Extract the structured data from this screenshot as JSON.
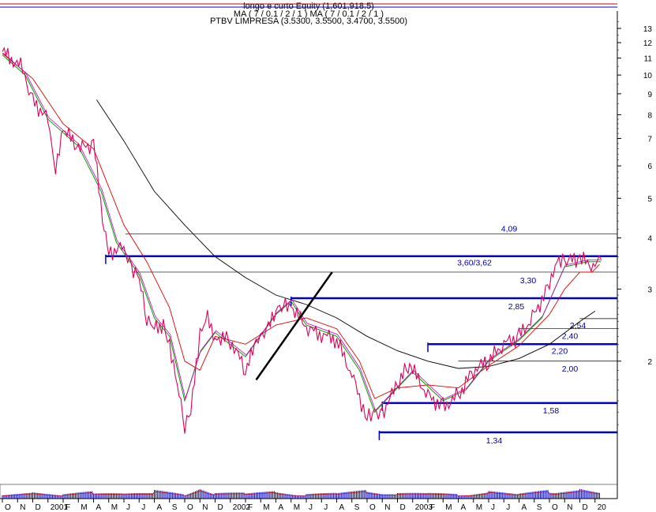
{
  "header": {
    "line1": "longo e curto Equity (1,601,918.5)",
    "line2": "MA ( 7 / 0.1 / 2 / 1 )  MA ( 7 / 0.1 / 2 / 1 )",
    "line3": "PTBV LIMPRESA (3.5300, 3.5500, 3.4700, 3.5500)"
  },
  "chart_data": {
    "type": "line",
    "title": "PTBV LIMPRESA",
    "y_scale": "log",
    "ylim": [
      1.2,
      14.5
    ],
    "y_ticks": [
      13,
      12,
      11,
      10,
      9,
      8,
      7,
      6,
      5,
      4,
      3,
      2
    ],
    "x_ticks": [
      "O",
      "N",
      "D",
      "2001",
      "F",
      "M",
      "A",
      "M",
      "J",
      "J",
      "A",
      "S",
      "O",
      "N",
      "D",
      "2002",
      "F",
      "M",
      "A",
      "M",
      "J",
      "J",
      "A",
      "S",
      "O",
      "N",
      "D",
      "2003",
      "F",
      "M",
      "A",
      "M",
      "J",
      "J",
      "A",
      "S",
      "O",
      "N",
      "D",
      "20"
    ],
    "x_index_range": [
      0,
      39.4
    ],
    "last_quote": {
      "open": 3.53,
      "high": 3.55,
      "low": 3.47,
      "close": 3.55
    },
    "price_path": [
      [
        0,
        11.4
      ],
      [
        1.2,
        10.5
      ],
      [
        2,
        8.7
      ],
      [
        3,
        7.8
      ],
      [
        3.5,
        6.0
      ],
      [
        4,
        7.4
      ],
      [
        5,
        6.6
      ],
      [
        6,
        6.8
      ],
      [
        6.7,
        4.2
      ],
      [
        7,
        3.7
      ],
      [
        8,
        3.8
      ],
      [
        8.5,
        3.4
      ],
      [
        9,
        3.2
      ],
      [
        9.5,
        2.5
      ],
      [
        10,
        2.4
      ],
      [
        10.6,
        2.45
      ],
      [
        11,
        2.2
      ],
      [
        11.5,
        1.8
      ],
      [
        12,
        1.4
      ],
      [
        12.4,
        1.5
      ],
      [
        13,
        2.3
      ],
      [
        13.5,
        2.55
      ],
      [
        14,
        2.3
      ],
      [
        15,
        2.25
      ],
      [
        16,
        1.9
      ],
      [
        16.7,
        2.2
      ],
      [
        17.5,
        2.4
      ],
      [
        18,
        2.65
      ],
      [
        18.5,
        2.8
      ],
      [
        19,
        2.75
      ],
      [
        20,
        2.4
      ],
      [
        22,
        2.25
      ],
      [
        23,
        1.85
      ],
      [
        24,
        1.45
      ],
      [
        24.5,
        1.5
      ],
      [
        25,
        1.5
      ],
      [
        26,
        1.75
      ],
      [
        26.7,
        1.95
      ],
      [
        27,
        1.9
      ],
      [
        28,
        1.65
      ],
      [
        29,
        1.55
      ],
      [
        30,
        1.65
      ],
      [
        31,
        1.9
      ],
      [
        32,
        2.0
      ],
      [
        33,
        2.2
      ],
      [
        34,
        2.3
      ],
      [
        35,
        2.6
      ],
      [
        36,
        3.1
      ],
      [
        36.5,
        3.6
      ],
      [
        37,
        3.5
      ],
      [
        38,
        3.55
      ],
      [
        39,
        3.4
      ],
      [
        39.4,
        3.55
      ]
    ],
    "ma_fast_path": [
      [
        0,
        11.2
      ],
      [
        1.5,
        10.0
      ],
      [
        3,
        7.8
      ],
      [
        5,
        6.7
      ],
      [
        6.5,
        5.2
      ],
      [
        7.5,
        3.9
      ],
      [
        9,
        3.25
      ],
      [
        10,
        2.55
      ],
      [
        11,
        2.3
      ],
      [
        12,
        1.6
      ],
      [
        13,
        2.1
      ],
      [
        14,
        2.35
      ],
      [
        16,
        2.05
      ],
      [
        18,
        2.6
      ],
      [
        19,
        2.8
      ],
      [
        20,
        2.45
      ],
      [
        22,
        2.3
      ],
      [
        23.5,
        1.9
      ],
      [
        24.5,
        1.5
      ],
      [
        26,
        1.72
      ],
      [
        27,
        1.88
      ],
      [
        29,
        1.6
      ],
      [
        30.5,
        1.7
      ],
      [
        32,
        2.0
      ],
      [
        34,
        2.25
      ],
      [
        35.5,
        2.55
      ],
      [
        37,
        3.4
      ],
      [
        38.5,
        3.5
      ],
      [
        39.4,
        3.5
      ]
    ],
    "ma_slow_path": [
      [
        0,
        11.3
      ],
      [
        2,
        9.8
      ],
      [
        4,
        7.6
      ],
      [
        6,
        6.6
      ],
      [
        8,
        4.3
      ],
      [
        9.5,
        3.5
      ],
      [
        11,
        2.7
      ],
      [
        12,
        2.0
      ],
      [
        13,
        1.9
      ],
      [
        14,
        2.3
      ],
      [
        16,
        2.2
      ],
      [
        18,
        2.45
      ],
      [
        20,
        2.55
      ],
      [
        22,
        2.4
      ],
      [
        23.5,
        2.0
      ],
      [
        24.5,
        1.62
      ],
      [
        26,
        1.72
      ],
      [
        28,
        1.75
      ],
      [
        30,
        1.72
      ],
      [
        32,
        1.95
      ],
      [
        34,
        2.18
      ],
      [
        36,
        2.6
      ],
      [
        37,
        3.0
      ],
      [
        38,
        3.3
      ],
      [
        38.8,
        3.3
      ],
      [
        39.3,
        3.45
      ]
    ],
    "ma_long_path": [
      [
        6.2,
        8.7
      ],
      [
        8,
        6.9
      ],
      [
        10,
        5.2
      ],
      [
        12,
        4.3
      ],
      [
        14,
        3.6
      ],
      [
        16,
        3.2
      ],
      [
        18,
        2.9
      ],
      [
        20,
        2.75
      ],
      [
        22,
        2.55
      ],
      [
        24,
        2.3
      ],
      [
        26,
        2.12
      ],
      [
        28,
        2.0
      ],
      [
        30,
        1.92
      ],
      [
        32,
        1.94
      ],
      [
        34,
        2.03
      ],
      [
        36,
        2.2
      ],
      [
        38,
        2.5
      ],
      [
        39,
        2.65
      ]
    ],
    "support_resistance": [
      {
        "label": "4,09",
        "value": 4.09,
        "x_start": 8.1,
        "weight": "thin"
      },
      {
        "label": "3,60/3,62",
        "value": 3.61,
        "x_start": 6.8,
        "weight": "thick"
      },
      {
        "label": "3,30",
        "value": 3.3,
        "x_start": 8.5,
        "weight": "thin"
      },
      {
        "label": "2,85",
        "value": 2.85,
        "x_start": 19.0,
        "weight": "thick"
      },
      {
        "label": "2,54",
        "value": 2.54,
        "x_start": 38.0,
        "weight": "thin"
      },
      {
        "label": "2,40",
        "value": 2.4,
        "x_start": 34.0,
        "weight": "thin"
      },
      {
        "label": "2,20",
        "value": 2.2,
        "x_start": 28.0,
        "weight": "thick"
      },
      {
        "label": "2,00",
        "value": 2.0,
        "x_start": 30.0,
        "weight": "thin"
      },
      {
        "label": "1,58",
        "value": 1.58,
        "x_start": 25.0,
        "weight": "thick"
      },
      {
        "label": "1,34",
        "value": 1.34,
        "x_start": 24.8,
        "weight": "thick"
      }
    ],
    "trendline": [
      [
        16.7,
        1.8
      ],
      [
        21.7,
        3.3
      ]
    ],
    "volume_path": [
      [
        0,
        0.5
      ],
      [
        2,
        0.6
      ],
      [
        4,
        0.4
      ],
      [
        6,
        0.7
      ],
      [
        8,
        0.5
      ],
      [
        10,
        0.8
      ],
      [
        12,
        0.4
      ],
      [
        13,
        1.0
      ],
      [
        14,
        0.5
      ],
      [
        16,
        0.6
      ],
      [
        18,
        0.7
      ],
      [
        20,
        0.4
      ],
      [
        22,
        0.6
      ],
      [
        24,
        0.8
      ],
      [
        26,
        0.5
      ],
      [
        28,
        0.6
      ],
      [
        30,
        0.4
      ],
      [
        32,
        0.7
      ],
      [
        34,
        0.5
      ],
      [
        36,
        0.8
      ],
      [
        38,
        0.9
      ],
      [
        39.4,
        0.6
      ]
    ]
  },
  "colors": {
    "price": "#e0005a",
    "ma_fast": "#00a000",
    "ma_mid": "#c000c0",
    "ma_slow": "#e00000",
    "ma_long": "#000000",
    "level": "#0000cc",
    "label": "#0000aa",
    "axis": "#000000"
  }
}
